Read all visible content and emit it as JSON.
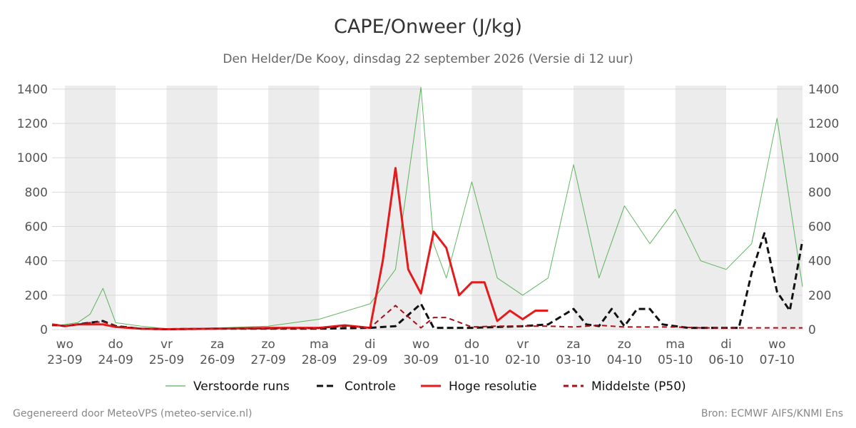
{
  "chart_data": {
    "type": "line",
    "title": "CAPE/Onweer (J/kg)",
    "subtitle": "Den Helder/De Kooy, dinsdag 22 september 2026 (Versie di 12 uur)",
    "ylim": [
      0,
      1420
    ],
    "yticks": [
      0,
      200,
      400,
      600,
      800,
      1000,
      1200,
      1400
    ],
    "xlim": [
      -0.25,
      14.5
    ],
    "x_ticks": [
      {
        "x": 0,
        "day": "wo",
        "date": "23-09"
      },
      {
        "x": 1,
        "day": "do",
        "date": "24-09"
      },
      {
        "x": 2,
        "day": "vr",
        "date": "25-09"
      },
      {
        "x": 3,
        "day": "za",
        "date": "26-09"
      },
      {
        "x": 4,
        "day": "zo",
        "date": "27-09"
      },
      {
        "x": 5,
        "day": "ma",
        "date": "28-09"
      },
      {
        "x": 6,
        "day": "di",
        "date": "29-09"
      },
      {
        "x": 7,
        "day": "wo",
        "date": "30-09"
      },
      {
        "x": 8,
        "day": "do",
        "date": "01-10"
      },
      {
        "x": 9,
        "day": "vr",
        "date": "02-10"
      },
      {
        "x": 10,
        "day": "za",
        "date": "03-10"
      },
      {
        "x": 11,
        "day": "zo",
        "date": "04-10"
      },
      {
        "x": 12,
        "day": "ma",
        "date": "05-10"
      },
      {
        "x": 13,
        "day": "di",
        "date": "06-10"
      },
      {
        "x": 14,
        "day": "wo",
        "date": "07-10"
      }
    ],
    "night_bands": [
      [
        0,
        1
      ],
      [
        2,
        3
      ],
      [
        4,
        5
      ],
      [
        6,
        7
      ],
      [
        8,
        9
      ],
      [
        10,
        11
      ],
      [
        12,
        13
      ],
      [
        14,
        14.5
      ]
    ],
    "grid": true,
    "legend_position": "bottom",
    "series": [
      {
        "name": "Verstoorde runs",
        "color": "#2ca02c",
        "style": "thin",
        "x": [
          -0.25,
          0.25,
          0.5,
          0.75,
          1.0,
          1.5,
          2.0,
          3.0,
          4.0,
          5.0,
          6.0,
          6.5,
          7.0,
          7.25,
          7.5,
          8.0,
          8.5,
          9.0,
          9.5,
          10.0,
          10.5,
          11.0,
          11.5,
          12.0,
          12.5,
          13.0,
          13.5,
          14.0,
          14.5
        ],
        "values": [
          20,
          40,
          90,
          240,
          40,
          20,
          5,
          10,
          20,
          60,
          150,
          350,
          1410,
          500,
          300,
          860,
          300,
          200,
          300,
          960,
          300,
          720,
          500,
          700,
          400,
          350,
          500,
          1230,
          250
        ]
      },
      {
        "name": "Controle",
        "color": "#111111",
        "style": "dashed-thick",
        "x": [
          -0.25,
          0.0,
          0.25,
          0.5,
          0.75,
          1.0,
          1.5,
          2.0,
          3.0,
          4.0,
          5.0,
          5.5,
          6.0,
          6.5,
          7.0,
          7.25,
          7.5,
          8.0,
          8.5,
          9.0,
          9.5,
          10.0,
          10.25,
          10.5,
          10.75,
          11.0,
          11.25,
          11.5,
          11.75,
          12.0,
          12.25,
          12.5,
          13.0,
          13.25,
          13.5,
          13.75,
          14.0,
          14.25,
          14.5
        ],
        "values": [
          30,
          20,
          30,
          40,
          50,
          20,
          5,
          2,
          5,
          5,
          5,
          8,
          10,
          20,
          150,
          10,
          10,
          10,
          15,
          20,
          30,
          120,
          30,
          20,
          120,
          20,
          120,
          120,
          30,
          20,
          10,
          10,
          10,
          10,
          330,
          560,
          220,
          110,
          520
        ]
      },
      {
        "name": "Hoge resolutie",
        "color": "#e41a1c",
        "style": "solid-thick",
        "x": [
          -0.25,
          0.0,
          0.25,
          0.5,
          0.75,
          1.0,
          1.5,
          2.0,
          3.0,
          4.0,
          5.0,
          5.5,
          6.0,
          6.25,
          6.5,
          6.75,
          7.0,
          7.25,
          7.5,
          7.75,
          8.0,
          8.25,
          8.5,
          8.75,
          9.0,
          9.25,
          9.5
        ],
        "values": [
          30,
          20,
          30,
          30,
          30,
          15,
          5,
          2,
          5,
          10,
          10,
          25,
          10,
          400,
          940,
          350,
          210,
          570,
          475,
          200,
          275,
          275,
          50,
          110,
          60,
          110,
          110
        ]
      },
      {
        "name": "Middelste (P50)",
        "color": "#a50f15",
        "style": "dashed",
        "x": [
          -0.25,
          0.0,
          0.25,
          0.5,
          0.75,
          1.0,
          1.5,
          2.0,
          3.0,
          4.0,
          5.0,
          5.5,
          6.0,
          6.5,
          7.0,
          7.25,
          7.5,
          8.0,
          8.5,
          9.0,
          9.5,
          10.0,
          10.5,
          11.0,
          11.5,
          12.0,
          12.5,
          13.0,
          13.5,
          14.0,
          14.5
        ],
        "values": [
          25,
          20,
          30,
          40,
          45,
          20,
          5,
          2,
          5,
          5,
          8,
          20,
          10,
          140,
          10,
          70,
          70,
          15,
          20,
          20,
          20,
          15,
          25,
          15,
          15,
          15,
          10,
          10,
          10,
          10,
          10
        ]
      }
    ]
  },
  "footer": {
    "left": "Gegenereerd door MeteoVPS (meteo-service.nl)",
    "right": "Bron: ECMWF AIFS/KNMI Ens"
  }
}
